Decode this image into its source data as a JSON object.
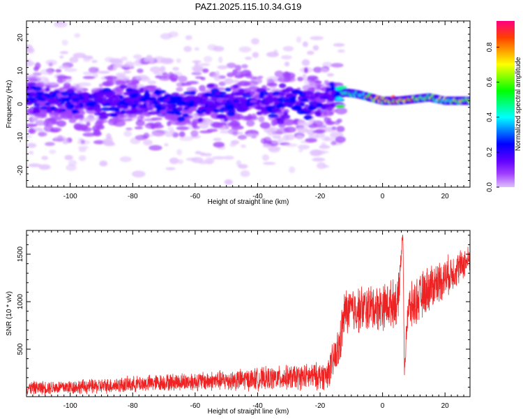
{
  "title": "PAZ1.2025.115.10.34.G19",
  "chart_data": [
    {
      "type": "heatmap",
      "xlabel": "Height of straight line (km)",
      "ylabel": "Frequency (Hz)",
      "xlim": [
        -114,
        28
      ],
      "ylim": [
        -25,
        25
      ],
      "xticks": [
        -100,
        -80,
        -60,
        -40,
        -20,
        0,
        20
      ],
      "yticks": [
        -20,
        -10,
        0,
        10,
        20
      ],
      "colorbar": {
        "label": "Normalized spectral amplitude",
        "range": [
          0,
          0.95
        ],
        "ticks": [
          0.0,
          0.2,
          0.4,
          0.6,
          0.8
        ],
        "colormap": [
          "#e0c0ff",
          "#a040ff",
          "#6000ff",
          "#0000ff",
          "#0080ff",
          "#00ffff",
          "#00ff80",
          "#00ff00",
          "#80ff00",
          "#ffff00",
          "#ffa000",
          "#ff4000",
          "#ff0040",
          "#ff0080"
        ]
      },
      "ridge": {
        "description_points": [
          {
            "x": -114,
            "f": 2.0
          },
          {
            "x": -100,
            "f": 1.0
          },
          {
            "x": -80,
            "f": 1.0
          },
          {
            "x": -60,
            "f": 0.0
          },
          {
            "x": -40,
            "f": 0.5
          },
          {
            "x": -20,
            "f": 0.5
          },
          {
            "x": -12,
            "f": 3.5
          },
          {
            "x": -8,
            "f": 3.0
          },
          {
            "x": -4,
            "f": 2.0
          },
          {
            "x": 0,
            "f": 1.0
          },
          {
            "x": 5,
            "f": 1.0
          },
          {
            "x": 10,
            "f": 1.5
          },
          {
            "x": 15,
            "f": 2.0
          },
          {
            "x": 20,
            "f": 1.0
          },
          {
            "x": 28,
            "f": 1.0
          }
        ],
        "peak_amplitude_by_segment": [
          {
            "from": -114,
            "to": -14,
            "amp": 0.2
          },
          {
            "from": -14,
            "to": -5,
            "amp": 0.45
          },
          {
            "from": -5,
            "to": 10,
            "amp": 0.85
          },
          {
            "from": 10,
            "to": 28,
            "amp": 0.65
          }
        ]
      },
      "scatter_spread_hz": {
        "before_-13km": 24,
        "after_-13km": 3
      }
    },
    {
      "type": "line",
      "xlabel": "Height of straight line (km)",
      "ylabel": "SNR (10 * v/v)",
      "xlim": [
        -114,
        28
      ],
      "ylim": [
        0,
        1750
      ],
      "xticks": [
        -100,
        -80,
        -60,
        -40,
        -20,
        0,
        20
      ],
      "yticks": [
        500,
        1000,
        1500
      ],
      "color": "#ee2222",
      "series": [
        {
          "envelope": [
            {
              "x": -114,
              "mean": 90,
              "noise": 70
            },
            {
              "x": -90,
              "mean": 110,
              "noise": 80
            },
            {
              "x": -70,
              "mean": 150,
              "noise": 90
            },
            {
              "x": -50,
              "mean": 170,
              "noise": 110
            },
            {
              "x": -30,
              "mean": 200,
              "noise": 130
            },
            {
              "x": -18,
              "mean": 220,
              "noise": 150
            },
            {
              "x": -14,
              "mean": 500,
              "noise": 250
            },
            {
              "x": -12,
              "mean": 900,
              "noise": 250
            },
            {
              "x": 0,
              "mean": 950,
              "noise": 250
            },
            {
              "x": 5,
              "mean": 1000,
              "noise": 250
            },
            {
              "x": 6.5,
              "mean": 1750,
              "noise": 50
            },
            {
              "x": 7,
              "mean": 250,
              "noise": 50
            },
            {
              "x": 8,
              "mean": 900,
              "noise": 250
            },
            {
              "x": 15,
              "mean": 1150,
              "noise": 250
            },
            {
              "x": 22,
              "mean": 1300,
              "noise": 200
            },
            {
              "x": 28,
              "mean": 1450,
              "noise": 150
            }
          ]
        }
      ]
    }
  ]
}
